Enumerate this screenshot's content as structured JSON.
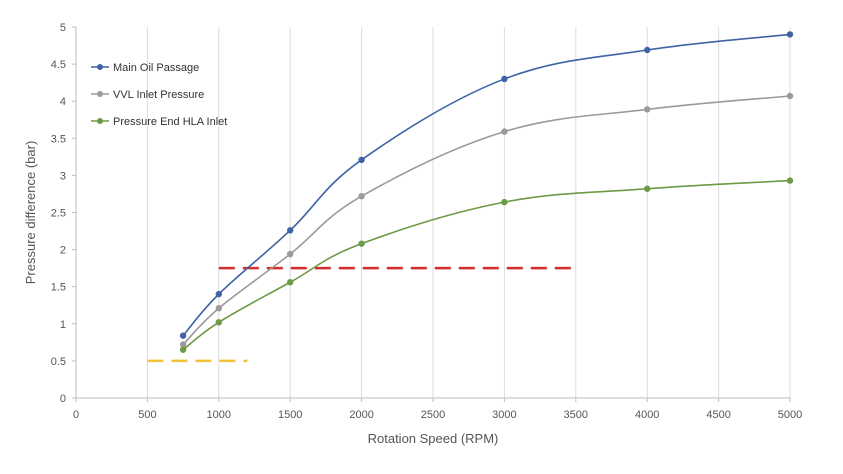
{
  "chart_data": {
    "type": "line",
    "title": "",
    "xlabel": "Rotation Speed (RPM)",
    "ylabel": "Pressure difference (bar)",
    "xlim": [
      0,
      5000
    ],
    "ylim": [
      0,
      5
    ],
    "x_ticks": [
      0,
      500,
      1000,
      1500,
      2000,
      2500,
      3000,
      3500,
      4000,
      4500,
      5000
    ],
    "y_ticks": [
      0,
      0.5,
      1,
      1.5,
      2,
      2.5,
      3,
      3.5,
      4,
      4.5,
      5
    ],
    "x_tick_labels": [
      "0",
      "500",
      "1000",
      "1500",
      "2000",
      "2500",
      "3000",
      "3500",
      "4000",
      "4500",
      "5000"
    ],
    "y_tick_labels": [
      "0",
      "0.5",
      "1",
      "1.5",
      "2",
      "2.5",
      "3",
      "3.5",
      "4",
      "4.5",
      "5"
    ],
    "grid": "vertical",
    "legend_position": "top-left",
    "series": [
      {
        "name": "Main Oil Passage",
        "color": "#3f63a6",
        "x": [
          750,
          1000,
          1500,
          2000,
          3000,
          4000,
          5000
        ],
        "y": [
          0.84,
          1.4,
          2.26,
          3.21,
          4.3,
          4.69,
          4.9
        ]
      },
      {
        "name": "VVL Inlet Pressure",
        "color": "#9a9a9a",
        "x": [
          750,
          1000,
          1500,
          2000,
          3000,
          4000,
          5000
        ],
        "y": [
          0.72,
          1.21,
          1.94,
          2.72,
          3.59,
          3.89,
          4.07
        ]
      },
      {
        "name": "Pressure End HLA Inlet",
        "color": "#6d9a45",
        "x": [
          750,
          1000,
          1500,
          2000,
          3000,
          4000,
          5000
        ],
        "y": [
          0.65,
          1.02,
          1.56,
          2.08,
          2.64,
          2.82,
          2.93
        ]
      }
    ],
    "reference_lines": [
      {
        "color": "#d62b2b",
        "style": "dashed",
        "x": [
          1000,
          3500
        ],
        "y": 1.75
      },
      {
        "color": "#f2c23a",
        "style": "dashed",
        "x": [
          500,
          1200
        ],
        "y": 0.5
      }
    ]
  }
}
